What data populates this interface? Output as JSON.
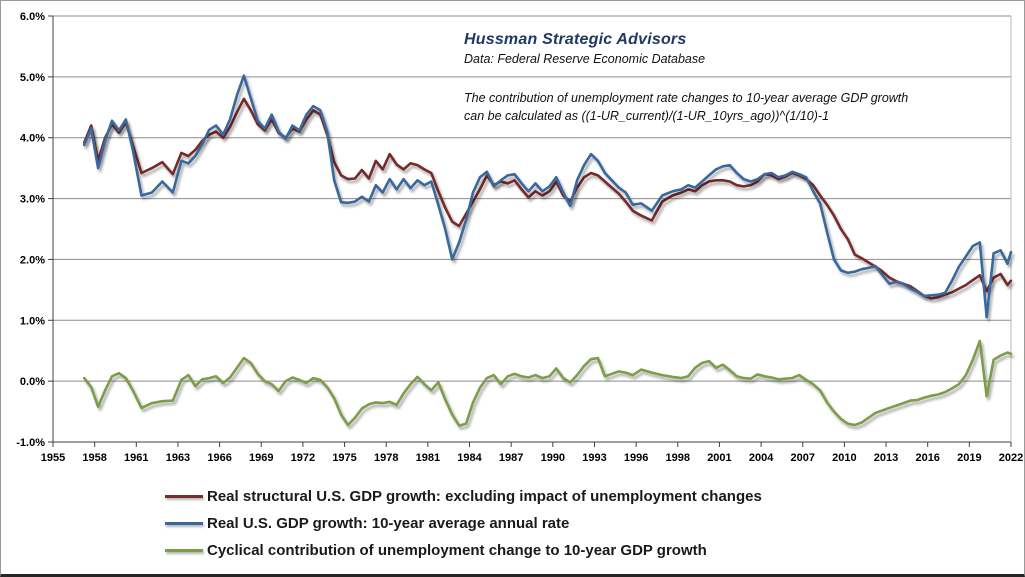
{
  "header": {
    "title": "Hussman Strategic Advisors",
    "subtitle": "Data: Federal Reserve Economic Database",
    "annotation_line1": "The contribution of unemployment rate changes to 10-year average GDP growth",
    "annotation_line2": "can be calculated as ((1-UR_current)/(1-UR_10yrs_ago))^(1/10)-1",
    "title_color": "#1F3864"
  },
  "chart_data": {
    "type": "line",
    "title": "",
    "xlabel": "",
    "ylabel": "",
    "ylim": [
      -1,
      6
    ],
    "grid": "horizontal",
    "grid_color": "#8C8C8C",
    "axis_color": "#404040",
    "right_border_color": "#b8b8b8",
    "legend_position": "bottom-left",
    "y_ticks": [
      -1,
      0,
      1,
      2,
      3,
      4,
      5,
      6
    ],
    "y_tick_labels": [
      "-1.0%",
      "0.0%",
      "1.0%",
      "2.0%",
      "3.0%",
      "4.0%",
      "5.0%",
      "6.0%"
    ],
    "x_ticks": [
      1955,
      1958,
      1961,
      1963,
      1966,
      1969,
      1972,
      1975,
      1978,
      1981,
      1984,
      1987,
      1990,
      1993,
      1996,
      1998,
      2001,
      2004,
      2007,
      2010,
      2013,
      2016,
      2019,
      2022
    ],
    "x_tick_labels": [
      "1955",
      "1958",
      "1961",
      "1963",
      "1966",
      "1969",
      "1972",
      "1975",
      "1978",
      "1981",
      "1984",
      "1987",
      "1990",
      "1993",
      "1996",
      "1998",
      "2001",
      "2004",
      "2007",
      "2010",
      "2013",
      "2016",
      "2019",
      "2022"
    ],
    "x": [
      1957.25,
      1957.75,
      1958.25,
      1958.75,
      1959.25,
      1959.75,
      1960.25,
      1960.75,
      1961.25,
      1961.75,
      1962.25,
      1962.75,
      1963.25,
      1963.75,
      1964.25,
      1964.75,
      1965.25,
      1965.75,
      1966.25,
      1966.75,
      1967.25,
      1967.75,
      1968.25,
      1968.75,
      1969.25,
      1969.75,
      1970.25,
      1970.75,
      1971.25,
      1971.75,
      1972.25,
      1972.75,
      1973.25,
      1973.75,
      1974.25,
      1974.75,
      1975.25,
      1975.75,
      1976.25,
      1976.75,
      1977.25,
      1977.75,
      1978.25,
      1978.75,
      1979.25,
      1979.75,
      1980.25,
      1980.75,
      1981.25,
      1981.75,
      1982.25,
      1982.75,
      1983.25,
      1983.75,
      1984.25,
      1984.75,
      1985.25,
      1985.75,
      1986.25,
      1986.75,
      1987.25,
      1987.75,
      1988.25,
      1988.75,
      1989.25,
      1989.75,
      1990.25,
      1990.75,
      1991.25,
      1991.75,
      1992.25,
      1992.75,
      1993.25,
      1993.75,
      1994.25,
      1994.75,
      1995.25,
      1995.75,
      1996.25,
      1996.75,
      1997.25,
      1997.75,
      1998.25,
      1998.75,
      1999.25,
      1999.75,
      2000.25,
      2000.75,
      2001.25,
      2001.75,
      2002.25,
      2002.75,
      2003.25,
      2003.75,
      2004.25,
      2004.75,
      2005.25,
      2005.75,
      2006.25,
      2006.75,
      2007.25,
      2007.75,
      2008.25,
      2008.75,
      2009.25,
      2009.75,
      2010.25,
      2010.75,
      2011.25,
      2011.75,
      2012.25,
      2012.75,
      2013.25,
      2013.75,
      2014.25,
      2014.75,
      2015.25,
      2015.75,
      2016.25,
      2016.75,
      2017.25,
      2017.75,
      2018.25,
      2018.75,
      2019.25,
      2019.75,
      2020.25,
      2020.75,
      2021.25,
      2021.75,
      2022.25
    ],
    "series": [
      {
        "name": "Real structural U.S. GDP growth: excluding impact of unemployment changes",
        "color": "#772C2A",
        "values": [
          3.92,
          4.2,
          3.62,
          4.0,
          4.22,
          4.08,
          4.25,
          3.88,
          3.42,
          3.5,
          3.6,
          3.4,
          3.75,
          3.7,
          3.8,
          3.95,
          4.05,
          4.1,
          4.0,
          4.18,
          4.42,
          4.64,
          4.45,
          4.22,
          4.12,
          4.3,
          4.08,
          4.0,
          4.15,
          4.1,
          4.3,
          4.45,
          4.38,
          4.05,
          3.6,
          3.38,
          3.32,
          3.33,
          3.47,
          3.33,
          3.62,
          3.48,
          3.73,
          3.56,
          3.48,
          3.58,
          3.55,
          3.48,
          3.42,
          3.12,
          2.85,
          2.62,
          2.55,
          2.75,
          2.95,
          3.15,
          3.38,
          3.22,
          3.28,
          3.25,
          3.3,
          3.15,
          3.02,
          3.12,
          3.05,
          3.12,
          3.28,
          3.05,
          2.95,
          3.18,
          3.35,
          3.42,
          3.38,
          3.28,
          3.18,
          3.08,
          2.95,
          2.8,
          2.72,
          2.64,
          2.95,
          3.05,
          3.1,
          3.15,
          3.12,
          3.22,
          3.28,
          3.3,
          3.3,
          3.28,
          3.22,
          3.2,
          3.22,
          3.28,
          3.4,
          3.38,
          3.32,
          3.36,
          3.42,
          3.38,
          3.32,
          3.22,
          3.05,
          2.9,
          2.72,
          2.5,
          2.33,
          2.08,
          2.02,
          1.95,
          1.88,
          1.8,
          1.7,
          1.64,
          1.6,
          1.56,
          1.48,
          1.4,
          1.36,
          1.38,
          1.42,
          1.46,
          1.52,
          1.58,
          1.66,
          1.74,
          1.48,
          1.7,
          1.76,
          1.58,
          1.65
        ]
      },
      {
        "name": "Real U.S. GDP growth: 10-year average annual rate",
        "color": "#39679E",
        "values": [
          3.88,
          4.15,
          3.5,
          3.95,
          4.28,
          4.12,
          4.3,
          3.8,
          3.05,
          3.1,
          3.28,
          3.1,
          3.62,
          3.58,
          3.7,
          3.9,
          4.13,
          4.2,
          4.05,
          4.3,
          4.7,
          5.02,
          4.65,
          4.28,
          4.15,
          4.38,
          4.1,
          3.98,
          4.2,
          4.12,
          4.38,
          4.52,
          4.45,
          4.1,
          3.3,
          2.94,
          2.93,
          2.95,
          3.03,
          2.95,
          3.22,
          3.1,
          3.32,
          3.15,
          3.32,
          3.17,
          3.3,
          3.22,
          3.28,
          2.9,
          2.5,
          2.0,
          2.28,
          2.65,
          3.1,
          3.35,
          3.44,
          3.2,
          3.3,
          3.38,
          3.4,
          3.25,
          3.12,
          3.25,
          3.12,
          3.2,
          3.35,
          3.1,
          2.88,
          3.3,
          3.55,
          3.73,
          3.62,
          3.42,
          3.3,
          3.18,
          3.1,
          2.9,
          2.92,
          2.8,
          3.05,
          3.12,
          3.15,
          3.22,
          3.18,
          3.28,
          3.38,
          3.48,
          3.53,
          3.55,
          3.42,
          3.32,
          3.28,
          3.32,
          3.4,
          3.42,
          3.35,
          3.38,
          3.44,
          3.4,
          3.35,
          3.12,
          2.92,
          2.45,
          2.0,
          1.82,
          1.78,
          1.8,
          1.84,
          1.86,
          1.89,
          1.74,
          1.6,
          1.63,
          1.6,
          1.52,
          1.47,
          1.4,
          1.41,
          1.42,
          1.45,
          1.65,
          1.88,
          2.05,
          2.22,
          2.28,
          1.05,
          2.1,
          2.15,
          1.93,
          2.12
        ]
      },
      {
        "name": "Cyclical contribution of unemployment change to 10-year GDP growth",
        "color": "#7E9C49",
        "values": [
          0.05,
          -0.1,
          -0.42,
          -0.15,
          0.08,
          0.13,
          0.05,
          -0.15,
          -0.44,
          -0.36,
          -0.33,
          -0.32,
          0.02,
          0.1,
          -0.08,
          0.03,
          0.05,
          0.08,
          -0.03,
          0.06,
          0.22,
          0.38,
          0.3,
          0.12,
          0.0,
          -0.05,
          -0.16,
          0.0,
          0.06,
          0.02,
          -0.03,
          0.05,
          0.02,
          -0.1,
          -0.28,
          -0.55,
          -0.72,
          -0.6,
          -0.45,
          -0.38,
          -0.35,
          -0.36,
          -0.34,
          -0.39,
          -0.2,
          -0.05,
          0.07,
          -0.05,
          -0.15,
          -0.02,
          -0.3,
          -0.55,
          -0.73,
          -0.7,
          -0.35,
          -0.11,
          0.05,
          0.1,
          -0.05,
          0.08,
          0.12,
          0.08,
          0.06,
          0.1,
          0.05,
          0.08,
          0.21,
          0.05,
          -0.02,
          0.1,
          0.25,
          0.36,
          0.38,
          0.08,
          0.12,
          0.16,
          0.14,
          0.1,
          0.19,
          0.14,
          0.1,
          0.07,
          0.05,
          0.08,
          0.22,
          0.3,
          0.33,
          0.22,
          0.27,
          0.18,
          0.08,
          0.05,
          0.04,
          0.11,
          0.08,
          0.06,
          0.03,
          0.04,
          0.05,
          0.1,
          0.02,
          -0.05,
          -0.15,
          -0.35,
          -0.5,
          -0.62,
          -0.7,
          -0.72,
          -0.68,
          -0.6,
          -0.52,
          -0.48,
          -0.44,
          -0.4,
          -0.36,
          -0.32,
          -0.31,
          -0.27,
          -0.24,
          -0.22,
          -0.18,
          -0.12,
          -0.05,
          0.1,
          0.35,
          0.66,
          -0.25,
          0.35,
          0.42,
          0.47,
          0.45
        ]
      }
    ]
  }
}
